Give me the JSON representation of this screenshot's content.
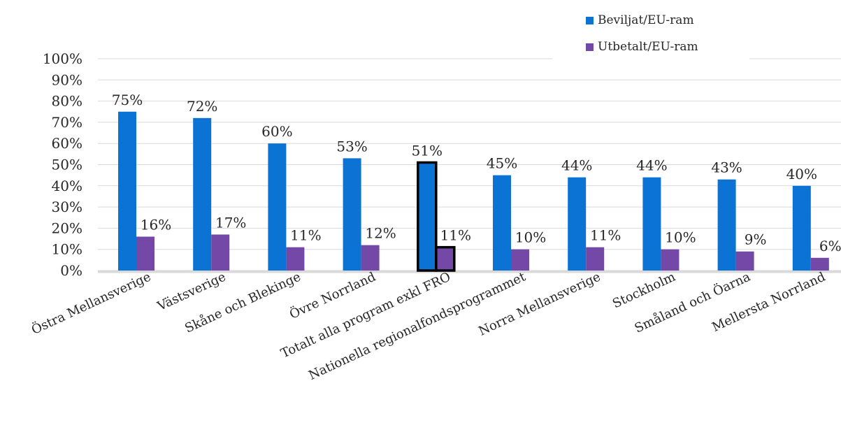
{
  "chart_data": {
    "type": "bar",
    "categories": [
      "Östra Mellansverige",
      "Västsverige",
      "Skåne och Blekinge",
      "Övre Norrland",
      "Totalt alla program exkl FRO",
      "Nationella regionalfondsprogrammet",
      "Norra Mellansverige",
      "Stockholm",
      "Småland och Öarna",
      "Mellersta Norrland"
    ],
    "series": [
      {
        "name": "Beviljat/EU-ram",
        "color": "#0B73D4",
        "values": [
          75,
          72,
          60,
          53,
          51,
          45,
          44,
          44,
          43,
          40
        ],
        "labels": [
          "75%",
          "72%",
          "60%",
          "53%",
          "51%",
          "45%",
          "44%",
          "44%",
          "43%",
          "40%"
        ]
      },
      {
        "name": "Utbetalt/EU-ram",
        "color": "#7348A6",
        "values": [
          16,
          17,
          11,
          12,
          11,
          10,
          11,
          10,
          9,
          6
        ],
        "labels": [
          "16%",
          "17%",
          "11%",
          "12%",
          "11%",
          "10%",
          "11%",
          "10%",
          "9%",
          "6%"
        ]
      }
    ],
    "highlighted_category": "Totalt alla program exkl FRO",
    "yticks": [
      "0%",
      "10%",
      "20%",
      "30%",
      "40%",
      "50%",
      "60%",
      "70%",
      "80%",
      "90%",
      "100%"
    ],
    "ylim": [
      0,
      100
    ],
    "grid": true,
    "legend_position": "top-right"
  }
}
